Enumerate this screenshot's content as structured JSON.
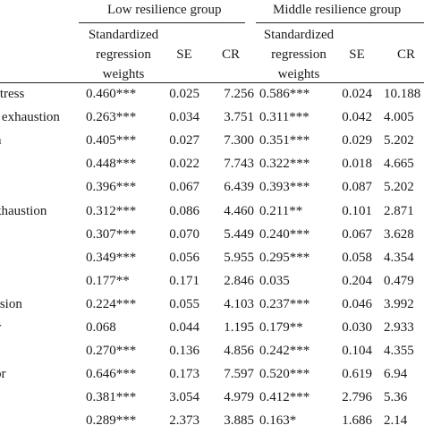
{
  "groups": {
    "low": "Low resilience group",
    "middle": "Middle resilience group"
  },
  "headers": {
    "weights": [
      "Standardized",
      "regression",
      "weights"
    ],
    "se": "SE",
    "cr": "CR"
  },
  "rows": [
    {
      "label": "stress",
      "low_w": "0.460***",
      "low_se": "0.025",
      "low_cr": "7.256",
      "mid_w": "0.586***",
      "mid_se": "0.024",
      "mid_cr": "10.188"
    },
    {
      "label": "l exhaustion",
      "low_w": "0.263***",
      "low_se": "0.034",
      "low_cr": "3.751",
      "mid_w": "0.311***",
      "mid_se": "0.042",
      "mid_cr": "4.005"
    },
    {
      "label": "n",
      "low_w": "0.405***",
      "low_se": "0.027",
      "low_cr": "7.300",
      "mid_w": "0.351***",
      "mid_se": "0.029",
      "mid_cr": "5.202"
    },
    {
      "label": "",
      "low_w": "0.448***",
      "low_se": "0.022",
      "low_cr": "7.743",
      "mid_w": "0.322***",
      "mid_se": "0.018",
      "mid_cr": "4.665"
    },
    {
      "label": "",
      "low_w": "0.396***",
      "low_se": "0.067",
      "low_cr": "6.439",
      "mid_w": "0.393***",
      "mid_se": "0.087",
      "mid_cr": "5.202"
    },
    {
      "label": "khaustion",
      "low_w": "0.312***",
      "low_se": "0.086",
      "low_cr": "4.460",
      "mid_w": "0.211**",
      "mid_se": "0.101",
      "mid_cr": "2.871"
    },
    {
      "label": "",
      "low_w": "0.307***",
      "low_se": "0.070",
      "low_cr": "5.449",
      "mid_w": "0.240***",
      "mid_se": "0.067",
      "mid_cr": "3.628"
    },
    {
      "label": "",
      "low_w": "0.349***",
      "low_se": "0.056",
      "low_cr": "5.955",
      "mid_w": "0.295***",
      "mid_se": "0.058",
      "mid_cr": "4.354"
    },
    {
      "label": "",
      "low_w": "0.177**",
      "low_se": "0.171",
      "low_cr": "2.846",
      "mid_w": "0.035",
      "mid_se": "0.204",
      "mid_cr": "0.479"
    },
    {
      "label": "ssion",
      "low_w": "0.224***",
      "low_se": "0.055",
      "low_cr": "4.103",
      "mid_w": "0.237***",
      "mid_se": "0.046",
      "mid_cr": "3.992"
    },
    {
      "label": "y",
      "low_w": "0.068",
      "low_se": "0.044",
      "low_cr": "1.195",
      "mid_w": "0.179**",
      "mid_se": "0.030",
      "mid_cr": "2.933"
    },
    {
      "label": "",
      "low_w": "0.270***",
      "low_se": "0.136",
      "low_cr": "4.856",
      "mid_w": "0.242***",
      "mid_se": "0.104",
      "mid_cr": "4.355"
    },
    {
      "label": "or",
      "low_w": "0.646***",
      "low_se": "0.173",
      "low_cr": "7.597",
      "mid_w": "0.520***",
      "mid_se": "0.619",
      "mid_cr": "6.94"
    },
    {
      "label": "",
      "low_w": "0.381***",
      "low_se": "3.054",
      "low_cr": "4.979",
      "mid_w": "0.412***",
      "mid_se": "2.796",
      "mid_cr": "5.36"
    },
    {
      "label": "",
      "low_w": "0.289***",
      "low_se": "2.373",
      "low_cr": "3.885",
      "mid_w": "0.163*",
      "mid_se": "1.686",
      "mid_cr": "2.14"
    }
  ]
}
